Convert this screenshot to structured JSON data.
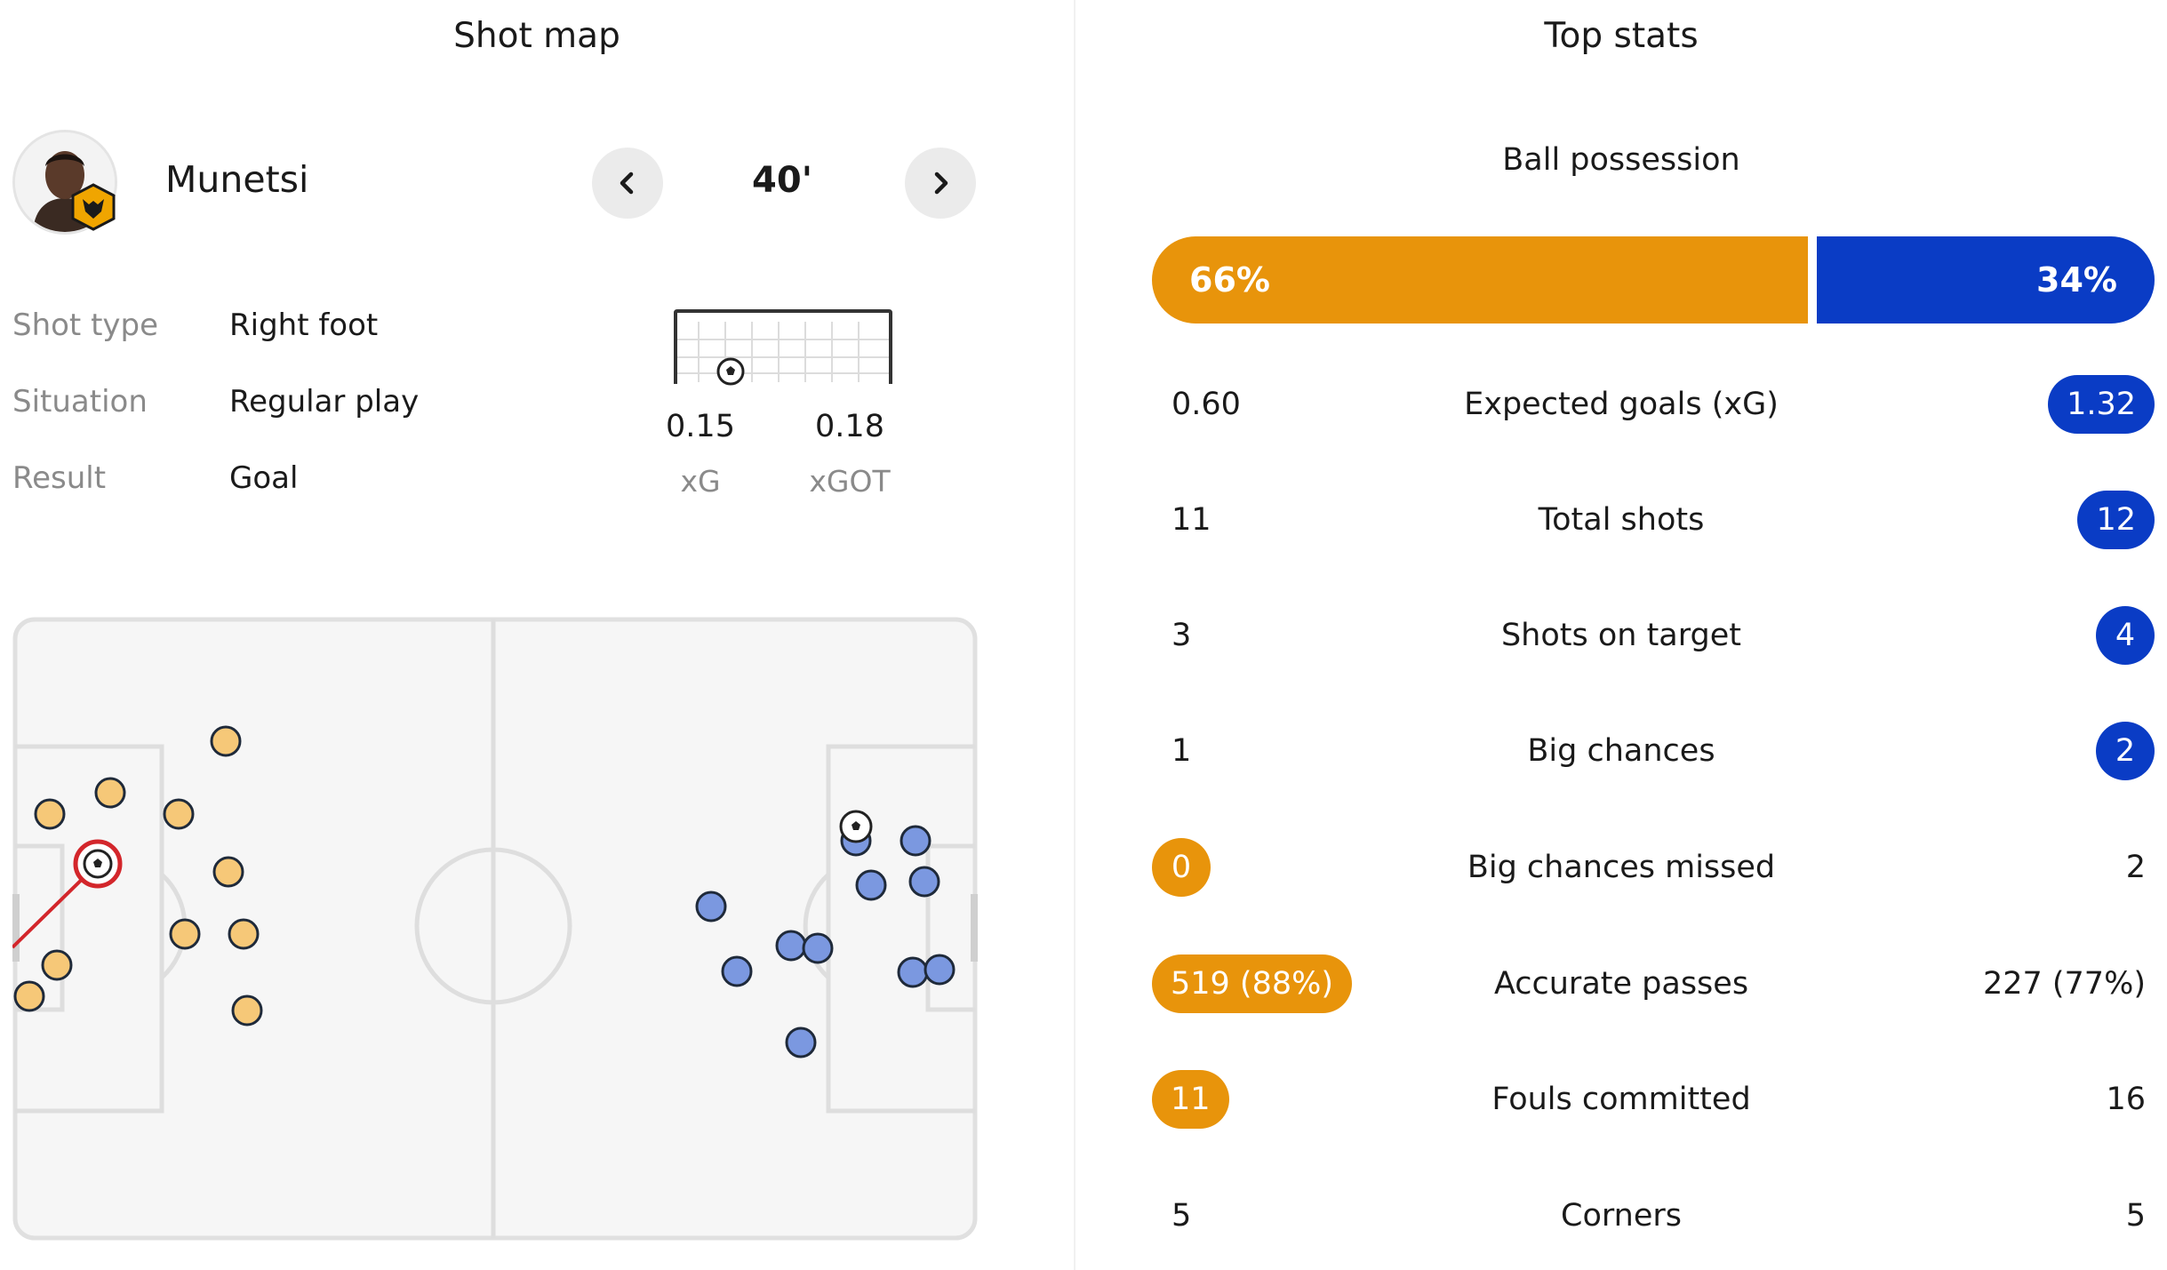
{
  "left_panel": {
    "title": "Shot map",
    "player": {
      "name": "Munetsi",
      "club_badge_icon": "wolves-badge-icon"
    },
    "nav": {
      "prev_icon": "chevron-left-icon",
      "next_icon": "chevron-right-icon",
      "minute": "40'"
    },
    "shot_info": [
      {
        "label": "Shot type",
        "value": "Right foot"
      },
      {
        "label": "Situation",
        "value": "Regular play"
      },
      {
        "label": "Result",
        "value": "Goal"
      }
    ],
    "xg": {
      "xg_value": "0.15",
      "xg_label": "xG",
      "xgot_value": "0.18",
      "xgot_label": "xGOT"
    },
    "shot_map_counts": {
      "home_shots": 11,
      "away_shots": 12
    }
  },
  "right_panel": {
    "title": "Top stats",
    "possession": {
      "label": "Ball possession",
      "home": "66%",
      "away": "34%",
      "home_fraction": 0.66
    },
    "stats": [
      {
        "name": "Expected goals (xG)",
        "home": "0.60",
        "away": "1.32",
        "highlight": "away"
      },
      {
        "name": "Total shots",
        "home": "11",
        "away": "12",
        "highlight": "away"
      },
      {
        "name": "Shots on target",
        "home": "3",
        "away": "4",
        "highlight": "away"
      },
      {
        "name": "Big chances",
        "home": "1",
        "away": "2",
        "highlight": "away"
      },
      {
        "name": "Big chances missed",
        "home": "0",
        "away": "2",
        "highlight": "home"
      },
      {
        "name": "Accurate passes",
        "home": "519 (88%)",
        "away": "227 (77%)",
        "highlight": "home"
      },
      {
        "name": "Fouls committed",
        "home": "11",
        "away": "16",
        "highlight": "home"
      },
      {
        "name": "Corners",
        "home": "5",
        "away": "5",
        "highlight": "none"
      }
    ]
  },
  "colors": {
    "home": "#e8940b",
    "away": "#0a3cc5",
    "home_shot": "#f6c878",
    "away_shot": "#7b98e0",
    "selected_ring": "#d3262b"
  }
}
